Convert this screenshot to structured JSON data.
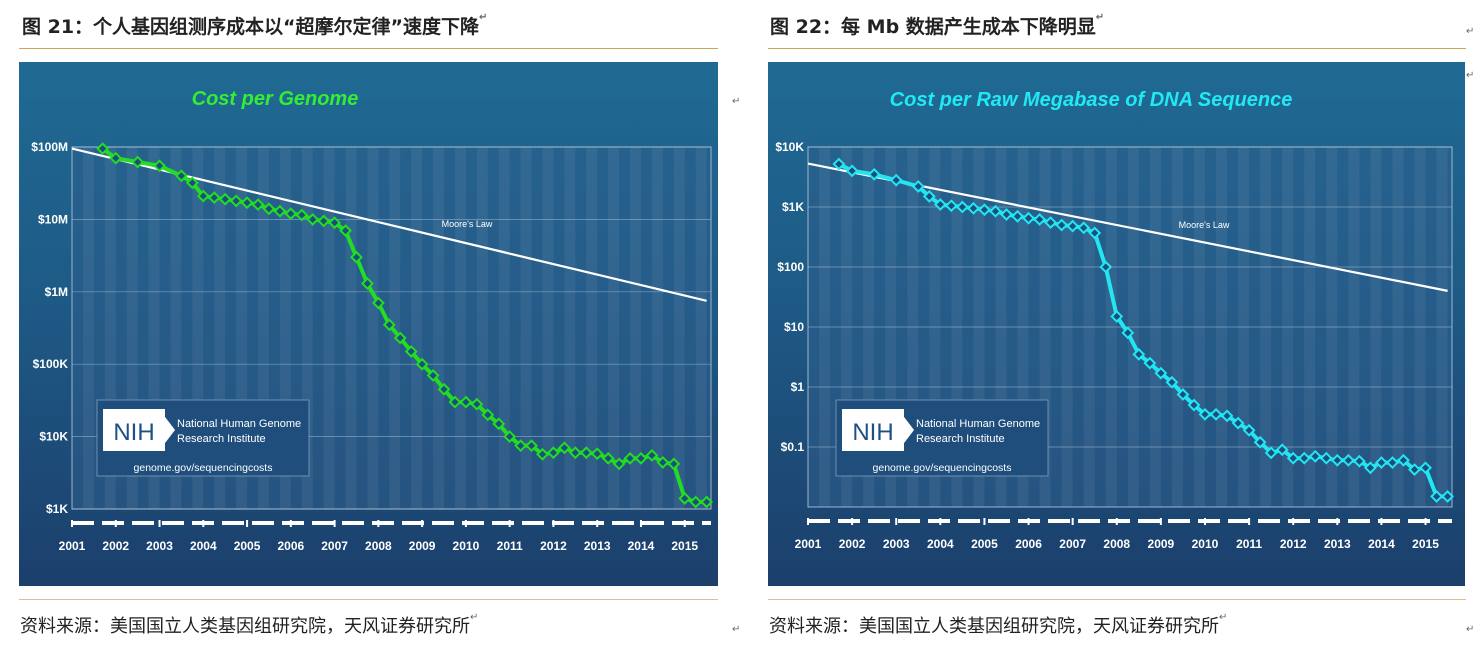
{
  "page": {
    "left_title": "图 21：个人基因组测序成本以“超摩尔定律”速度下降",
    "right_title": "图 22：每 Mb 数据产生成本下降明显",
    "left_source": "资料来源：美国国立人类基因组研究院，天风证券研究所",
    "right_source": "资料来源：美国国立人类基因组研究院，天风证券研究所",
    "para_mark": "↵"
  },
  "nih": {
    "logo_text": "NIH",
    "org_line1": "National Human Genome",
    "org_line2": "Research Institute",
    "url": "genome.gov/sequencingcosts"
  },
  "chart_data": [
    {
      "type": "line",
      "title": "Cost per Genome",
      "title_color": "#33ee33",
      "line_color": "#22dd22",
      "marker": "diamond",
      "y_scale": "log",
      "ylim": [
        1000,
        100000000
      ],
      "yticks": [
        1000,
        10000,
        100000,
        1000000,
        10000000,
        100000000
      ],
      "ytick_labels": [
        "$1K",
        "$10K",
        "$100K",
        "$1M",
        "$10M",
        "$100M"
      ],
      "xlim": [
        2001,
        2015.6
      ],
      "xticks": [
        2001,
        2002,
        2003,
        2004,
        2005,
        2006,
        2007,
        2008,
        2009,
        2010,
        2011,
        2012,
        2013,
        2014,
        2015
      ],
      "xtick_labels": [
        "2001",
        "2002",
        "2003",
        "2004",
        "2005",
        "2006",
        "2007",
        "2008",
        "2009",
        "2010",
        "2011",
        "2012",
        "2013",
        "2014",
        "2015"
      ],
      "moores_law": {
        "label": "Moore's Law",
        "x": [
          2001,
          2015.5
        ],
        "y": [
          95000000,
          750000
        ]
      },
      "series": [
        {
          "x": [
            2001.7,
            2002.0,
            2002.5,
            2003.0,
            2003.5,
            2003.75,
            2004.0,
            2004.25,
            2004.5,
            2004.75,
            2005.0,
            2005.25,
            2005.5,
            2005.75,
            2006.0,
            2006.25,
            2006.5,
            2006.75,
            2007.0,
            2007.25,
            2007.5,
            2007.75,
            2008.0,
            2008.25,
            2008.5,
            2008.75,
            2009.0,
            2009.25,
            2009.5,
            2009.75,
            2010.0,
            2010.25,
            2010.5,
            2010.75,
            2011.0,
            2011.25,
            2011.5,
            2011.75,
            2012.0,
            2012.25,
            2012.5,
            2012.75,
            2013.0,
            2013.25,
            2013.5,
            2013.75,
            2014.0,
            2014.25,
            2014.5,
            2014.75,
            2015.0,
            2015.25,
            2015.5
          ],
          "y": [
            95000000,
            70000000,
            62000000,
            55000000,
            40000000,
            32000000,
            21000000,
            20000000,
            19000000,
            18000000,
            17000000,
            16000000,
            14000000,
            13000000,
            12000000,
            11500000,
            10000000,
            9500000,
            9000000,
            7000000,
            3000000,
            1300000,
            700000,
            350000,
            230000,
            150000,
            100000,
            70000,
            45000,
            30000,
            30000,
            28000,
            20000,
            15000,
            10000,
            7500,
            7500,
            5700,
            6000,
            7000,
            6000,
            6000,
            5800,
            5000,
            4200,
            5000,
            5000,
            5500,
            4400,
            4200,
            1400,
            1250,
            1250
          ]
        }
      ]
    },
    {
      "type": "line",
      "title": "Cost per Raw Megabase of DNA Sequence",
      "title_color": "#22e8f4",
      "line_color": "#22e6f2",
      "marker": "diamond",
      "y_scale": "log",
      "ylim": [
        0.01,
        10000
      ],
      "yticks": [
        0.1,
        1,
        10,
        100,
        1000,
        10000
      ],
      "ytick_labels": [
        "$0.1",
        "$1",
        "$10",
        "$100",
        "$1K",
        "$10K"
      ],
      "xlim": [
        2001,
        2015.6
      ],
      "xticks": [
        2001,
        2002,
        2003,
        2004,
        2005,
        2006,
        2007,
        2008,
        2009,
        2010,
        2011,
        2012,
        2013,
        2014,
        2015
      ],
      "xtick_labels": [
        "2001",
        "2002",
        "2003",
        "2004",
        "2005",
        "2006",
        "2007",
        "2008",
        "2009",
        "2010",
        "2011",
        "2012",
        "2013",
        "2014",
        "2015"
      ],
      "moores_law": {
        "label": "Moore's Law",
        "x": [
          2001,
          2015.5
        ],
        "y": [
          5300,
          40
        ]
      },
      "series": [
        {
          "x": [
            2001.7,
            2002.0,
            2002.5,
            2003.0,
            2003.5,
            2003.75,
            2004.0,
            2004.25,
            2004.5,
            2004.75,
            2005.0,
            2005.25,
            2005.5,
            2005.75,
            2006.0,
            2006.25,
            2006.5,
            2006.75,
            2007.0,
            2007.25,
            2007.5,
            2007.75,
            2008.0,
            2008.25,
            2008.5,
            2008.75,
            2009.0,
            2009.25,
            2009.5,
            2009.75,
            2010.0,
            2010.25,
            2010.5,
            2010.75,
            2011.0,
            2011.25,
            2011.5,
            2011.75,
            2012.0,
            2012.25,
            2012.5,
            2012.75,
            2013.0,
            2013.25,
            2013.5,
            2013.75,
            2014.0,
            2014.25,
            2014.5,
            2014.75,
            2015.0,
            2015.25,
            2015.5
          ],
          "y": [
            5200,
            4000,
            3500,
            2800,
            2200,
            1500,
            1100,
            1050,
            1000,
            950,
            900,
            850,
            750,
            700,
            650,
            620,
            550,
            500,
            480,
            450,
            370,
            100,
            15,
            8,
            3.5,
            2.5,
            1.7,
            1.2,
            0.75,
            0.5,
            0.35,
            0.35,
            0.33,
            0.25,
            0.19,
            0.12,
            0.08,
            0.09,
            0.065,
            0.065,
            0.07,
            0.065,
            0.06,
            0.06,
            0.058,
            0.045,
            0.055,
            0.055,
            0.06,
            0.042,
            0.045,
            0.015,
            0.015
          ]
        }
      ]
    }
  ]
}
